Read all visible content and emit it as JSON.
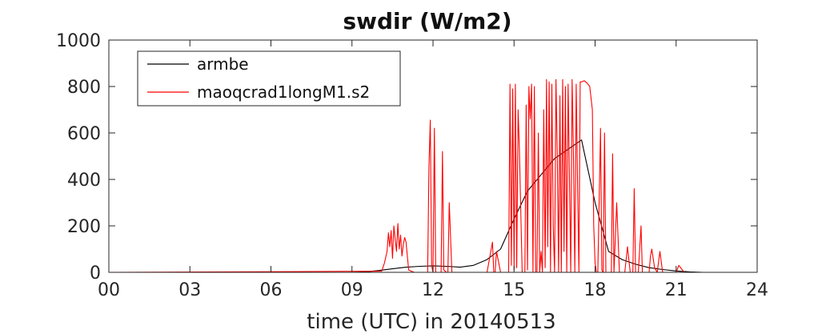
{
  "chart_data": {
    "type": "line",
    "title": "swdir  (W/m2)",
    "xlabel": "time (UTC) in 20140513",
    "ylabel": "",
    "xlim": [
      0,
      24
    ],
    "ylim": [
      0,
      1000
    ],
    "x_ticks": [
      "00",
      "03",
      "06",
      "09",
      "12",
      "15",
      "18",
      "21",
      "24"
    ],
    "y_ticks": [
      "0",
      "200",
      "400",
      "600",
      "800",
      "1000"
    ],
    "grid": false,
    "legend_position": "top-left",
    "series": [
      {
        "name": "armbe",
        "color": "#000000",
        "x": [
          0,
          9.0,
          9.5,
          10.0,
          10.5,
          11.0,
          11.5,
          12.0,
          12.5,
          13.0,
          13.5,
          14.0,
          14.5,
          15.0,
          15.5,
          16.0,
          16.5,
          17.0,
          17.5,
          18.0,
          18.5,
          19.0,
          19.5,
          20.0,
          20.5,
          21.0,
          21.5,
          22.0,
          24
        ],
        "y": [
          0,
          0,
          2,
          8,
          15,
          22,
          26,
          28,
          26,
          22,
          30,
          55,
          100,
          230,
          350,
          420,
          490,
          530,
          570,
          300,
          90,
          55,
          35,
          20,
          12,
          6,
          2,
          0,
          0
        ]
      },
      {
        "name": "maoqcrad1longM1.s2",
        "color": "#ff0000",
        "x": [
          0,
          10.1,
          10.2,
          10.3,
          10.35,
          10.4,
          10.45,
          10.5,
          10.55,
          10.6,
          10.65,
          10.7,
          10.75,
          10.8,
          10.85,
          10.9,
          10.95,
          11.0,
          11.1,
          11.3,
          11.5,
          11.8,
          11.85,
          11.9,
          11.95,
          12.0,
          12.05,
          12.1,
          12.3,
          12.35,
          12.4,
          12.5,
          12.55,
          12.6,
          12.7,
          12.8,
          12.85,
          12.9,
          13.0,
          13.5,
          14.0,
          14.2,
          14.25,
          14.3,
          14.35,
          14.5,
          14.6,
          14.7,
          14.8,
          14.85,
          14.9,
          14.95,
          15.0,
          15.05,
          15.1,
          15.15,
          15.2,
          15.3,
          15.4,
          15.45,
          15.5,
          15.55,
          15.6,
          15.65,
          15.7,
          15.75,
          15.8,
          15.85,
          15.9,
          15.95,
          16.0,
          16.05,
          16.1,
          16.15,
          16.2,
          16.25,
          16.3,
          16.35,
          16.4,
          16.45,
          16.5,
          16.55,
          16.6,
          16.65,
          16.7,
          16.75,
          16.8,
          16.85,
          16.9,
          16.95,
          17.0,
          17.05,
          17.1,
          17.15,
          17.2,
          17.25,
          17.3,
          17.35,
          17.4,
          17.45,
          17.5,
          17.6,
          17.7,
          17.8,
          17.9,
          17.95,
          18.0,
          18.05,
          18.1,
          18.2,
          18.25,
          18.3,
          18.35,
          18.4,
          18.5,
          18.6,
          18.65,
          18.7,
          18.8,
          18.9,
          19.0,
          19.1,
          19.2,
          19.3,
          19.4,
          19.45,
          19.5,
          19.6,
          19.7,
          19.75,
          19.8,
          19.9,
          20.0,
          20.05,
          20.1,
          20.2,
          20.3,
          20.4,
          20.5,
          20.6,
          20.8,
          20.9,
          21.0,
          21.1,
          21.3,
          21.5,
          24
        ],
        "y": [
          0,
          5,
          40,
          90,
          170,
          110,
          180,
          60,
          200,
          140,
          90,
          210,
          100,
          160,
          70,
          120,
          150,
          130,
          10,
          0,
          0,
          0,
          450,
          655,
          30,
          0,
          620,
          0,
          0,
          520,
          10,
          0,
          0,
          300,
          0,
          0,
          0,
          0,
          0,
          0,
          0,
          130,
          0,
          0,
          90,
          0,
          0,
          0,
          0,
          810,
          30,
          790,
          10,
          810,
          20,
          700,
          520,
          0,
          0,
          720,
          10,
          800,
          660,
          810,
          0,
          800,
          0,
          0,
          600,
          0,
          90,
          0,
          700,
          20,
          830,
          110,
          820,
          0,
          810,
          200,
          0,
          830,
          500,
          0,
          760,
          0,
          830,
          90,
          800,
          0,
          810,
          420,
          0,
          830,
          500,
          0,
          810,
          380,
          0,
          820,
          820,
          825,
          815,
          800,
          700,
          200,
          40,
          0,
          0,
          620,
          10,
          0,
          600,
          0,
          0,
          0,
          510,
          0,
          300,
          0,
          0,
          0,
          110,
          0,
          0,
          360,
          0,
          0,
          200,
          0,
          0,
          0,
          0,
          70,
          100,
          20,
          0,
          90,
          0,
          0,
          0,
          0,
          0,
          30,
          0,
          0,
          0
        ]
      }
    ]
  }
}
